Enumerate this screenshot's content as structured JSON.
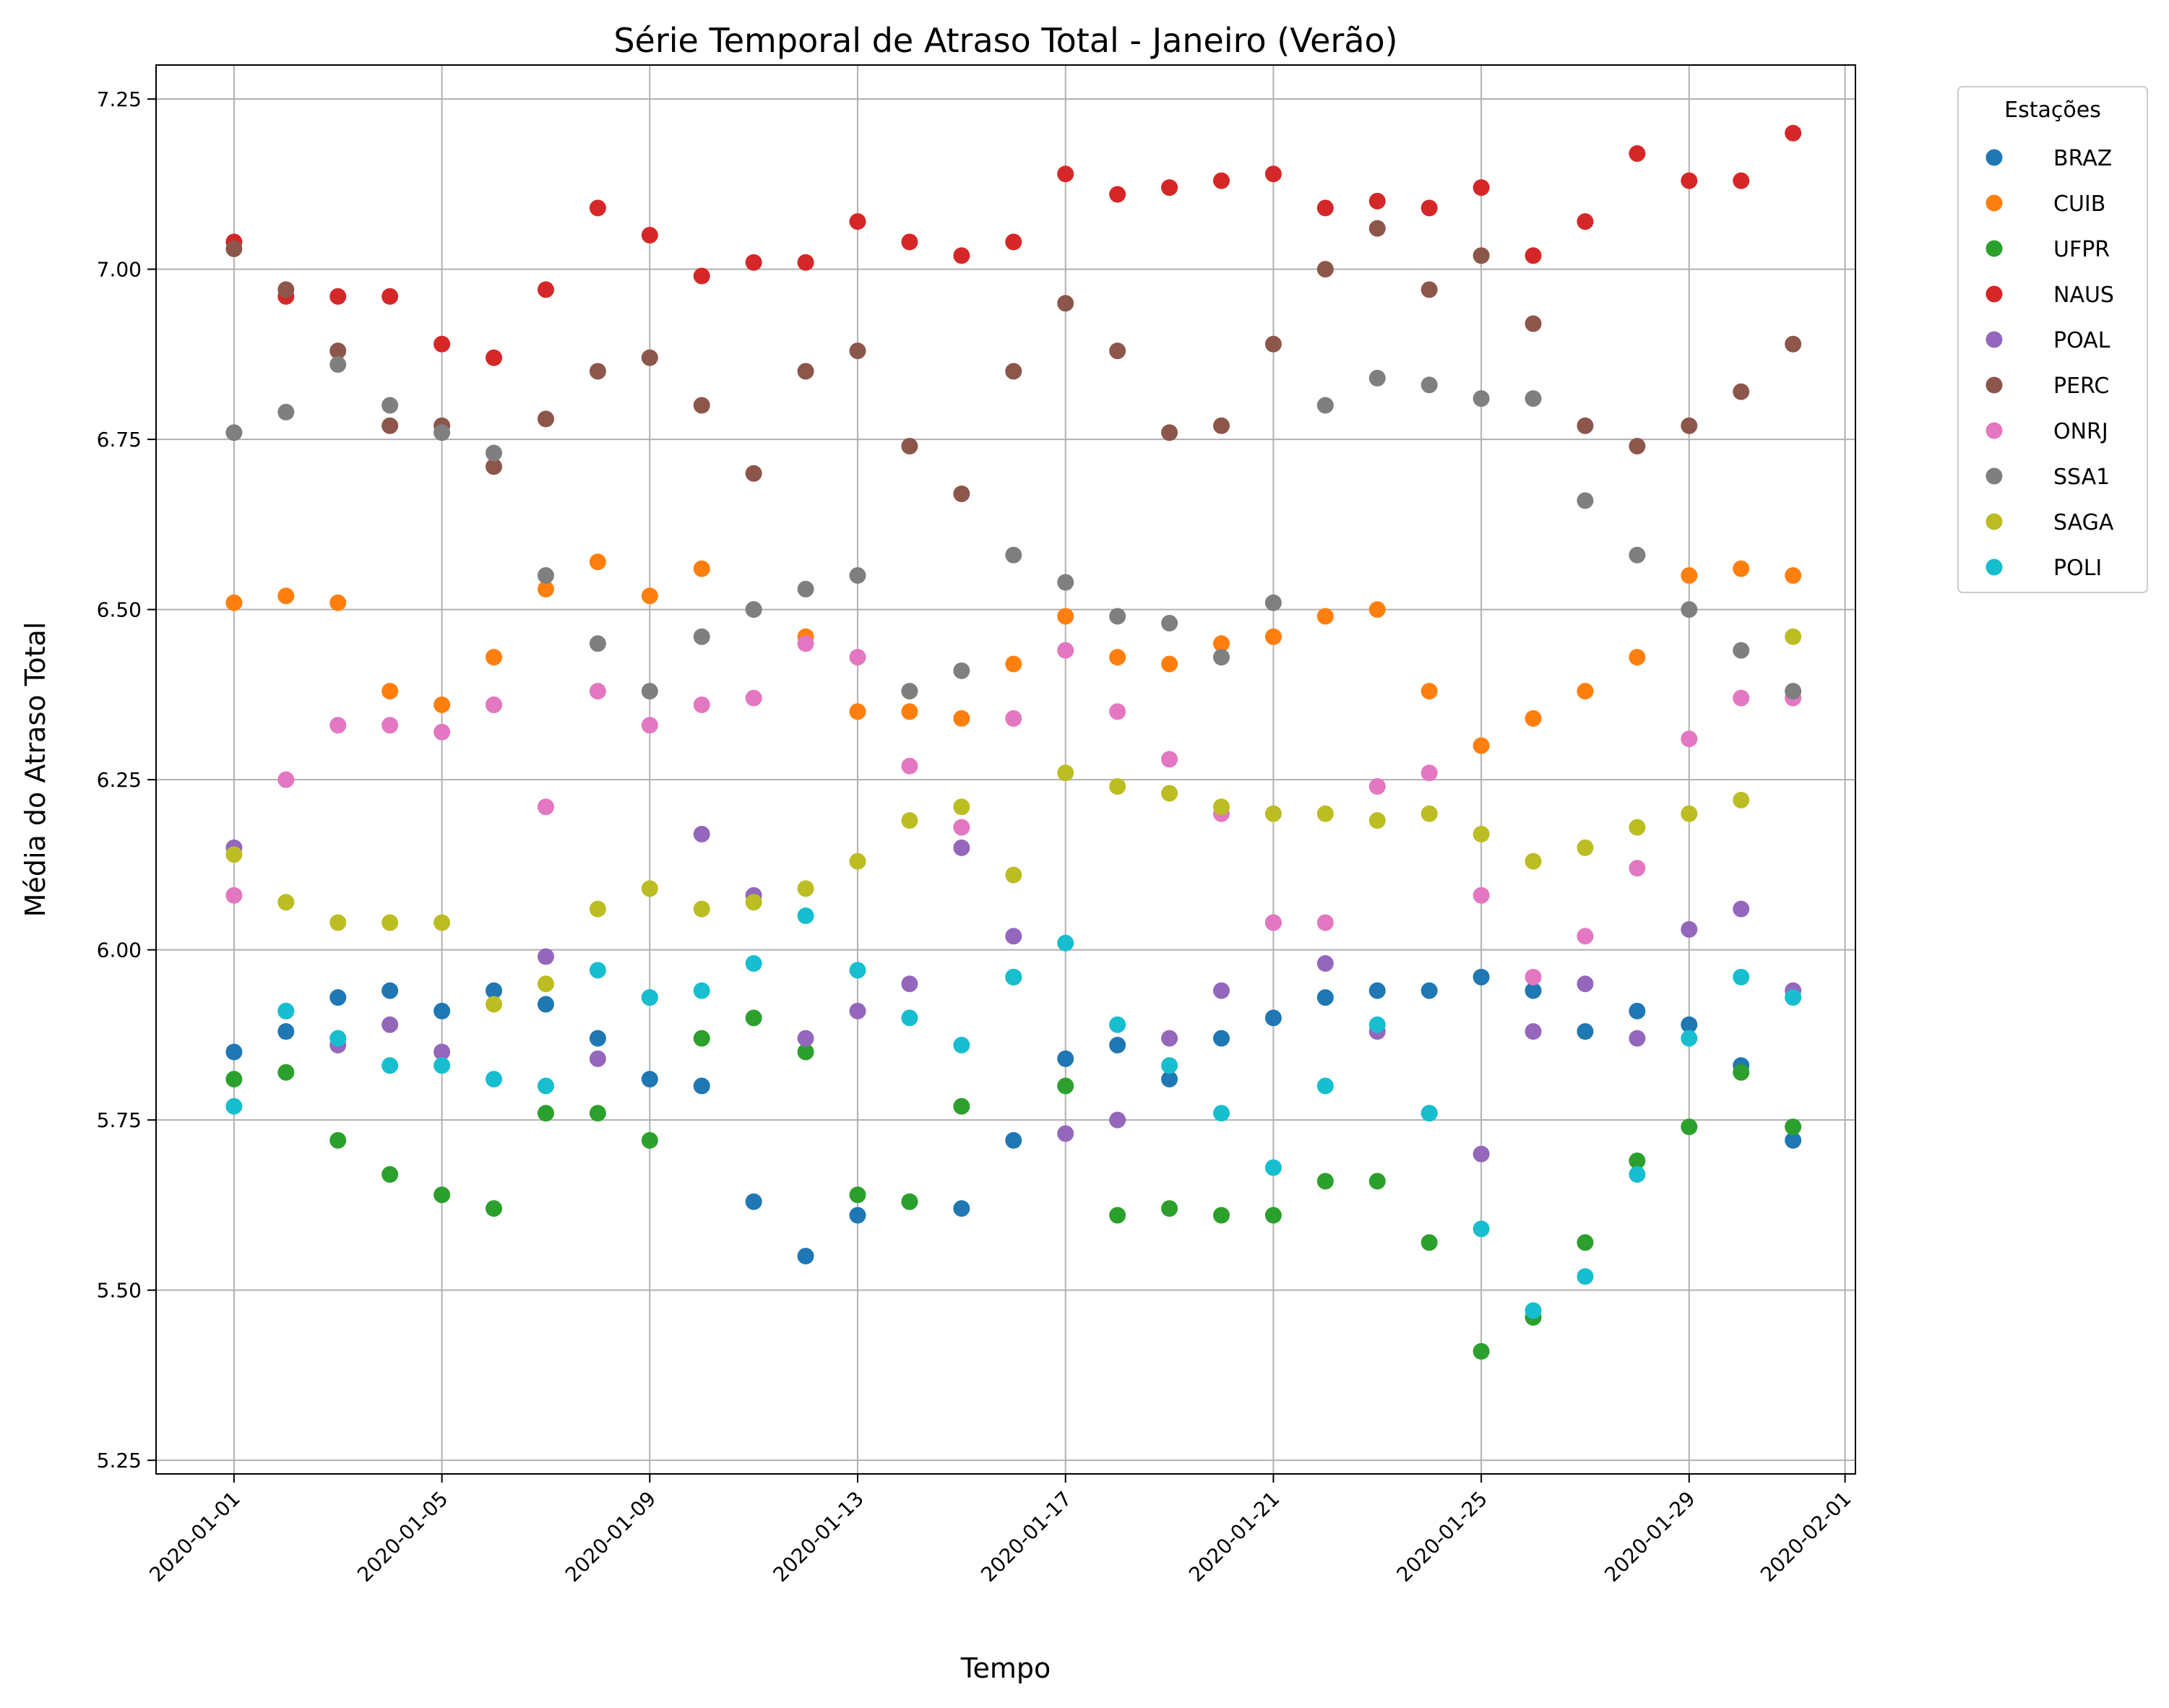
{
  "chart_data": {
    "type": "scatter",
    "title": "Série Temporal de Atraso Total - Janeiro (Verão)",
    "xlabel": "Tempo",
    "ylabel": "Média do Atraso Total",
    "x_type": "date",
    "xlim": [
      "2019-12-30",
      "2020-02-01"
    ],
    "ylim": [
      5.23,
      7.3
    ],
    "x_ticks": [
      "2020-01-01",
      "2020-01-05",
      "2020-01-09",
      "2020-01-13",
      "2020-01-17",
      "2020-01-21",
      "2020-01-25",
      "2020-01-29",
      "2020-02-01"
    ],
    "y_ticks": [
      "5.25",
      "5.50",
      "5.75",
      "6.00",
      "6.25",
      "6.50",
      "6.75",
      "7.00",
      "7.25"
    ],
    "grid": true,
    "legend": {
      "title": "Estações",
      "position": "outside-top-right"
    },
    "x": [
      "2020-01-01",
      "2020-01-02",
      "2020-01-03",
      "2020-01-04",
      "2020-01-05",
      "2020-01-06",
      "2020-01-07",
      "2020-01-08",
      "2020-01-09",
      "2020-01-10",
      "2020-01-11",
      "2020-01-12",
      "2020-01-13",
      "2020-01-14",
      "2020-01-15",
      "2020-01-16",
      "2020-01-17",
      "2020-01-18",
      "2020-01-19",
      "2020-01-20",
      "2020-01-21",
      "2020-01-22",
      "2020-01-23",
      "2020-01-24",
      "2020-01-25",
      "2020-01-26",
      "2020-01-27",
      "2020-01-28",
      "2020-01-29",
      "2020-01-30",
      "2020-01-31"
    ],
    "series": [
      {
        "name": "BRAZ",
        "color": "#1f77b4",
        "values": [
          5.85,
          5.88,
          5.93,
          5.94,
          5.91,
          5.94,
          5.92,
          5.87,
          5.81,
          5.8,
          5.63,
          5.55,
          5.61,
          5.63,
          5.62,
          5.72,
          5.84,
          5.86,
          5.81,
          5.87,
          5.9,
          5.93,
          5.94,
          5.94,
          5.96,
          5.94,
          5.88,
          5.91,
          5.89,
          5.83,
          5.72
        ]
      },
      {
        "name": "CUIB",
        "color": "#ff7f0e",
        "values": [
          6.51,
          6.52,
          6.51,
          6.38,
          6.36,
          6.43,
          6.53,
          6.57,
          6.52,
          6.56,
          6.5,
          6.46,
          6.35,
          6.35,
          6.34,
          6.42,
          6.49,
          6.43,
          6.42,
          6.45,
          6.46,
          6.49,
          6.5,
          6.38,
          6.3,
          6.34,
          6.38,
          6.43,
          6.55,
          6.56,
          6.55
        ]
      },
      {
        "name": "UFPR",
        "color": "#2ca02c",
        "values": [
          5.81,
          5.82,
          5.72,
          5.67,
          5.64,
          5.62,
          5.76,
          5.76,
          5.72,
          5.87,
          5.9,
          5.85,
          5.64,
          5.63,
          5.77,
          5.96,
          5.8,
          5.61,
          5.62,
          5.61,
          5.61,
          5.66,
          5.66,
          5.57,
          5.41,
          5.46,
          5.57,
          5.69,
          5.74,
          5.82,
          5.74
        ]
      },
      {
        "name": "NAUS",
        "color": "#d62728",
        "values": [
          7.04,
          6.96,
          6.96,
          6.96,
          6.89,
          6.87,
          6.97,
          7.09,
          7.05,
          6.99,
          7.01,
          7.01,
          7.07,
          7.04,
          7.02,
          7.04,
          7.14,
          7.11,
          7.12,
          7.13,
          7.14,
          7.09,
          7.1,
          7.09,
          7.12,
          7.02,
          7.07,
          7.17,
          7.13,
          7.13,
          7.2
        ]
      },
      {
        "name": "POAL",
        "color": "#9467bd",
        "values": [
          6.15,
          5.91,
          5.86,
          5.89,
          5.85,
          6.36,
          5.99,
          5.84,
          5.93,
          6.17,
          6.08,
          5.87,
          5.91,
          5.95,
          6.15,
          6.02,
          5.73,
          5.75,
          5.87,
          5.94,
          6.04,
          5.98,
          5.88,
          5.76,
          5.7,
          5.88,
          5.95,
          5.87,
          6.03,
          6.06,
          5.94
        ]
      },
      {
        "name": "PERC",
        "color": "#8c564b",
        "values": [
          7.03,
          6.97,
          6.88,
          6.77,
          6.77,
          6.71,
          6.78,
          6.85,
          6.87,
          6.8,
          6.7,
          6.85,
          6.88,
          6.74,
          6.67,
          6.85,
          6.95,
          6.88,
          6.76,
          6.77,
          6.89,
          7.0,
          7.06,
          6.97,
          7.02,
          6.92,
          6.77,
          6.74,
          6.77,
          6.82,
          6.89
        ]
      },
      {
        "name": "ONRJ",
        "color": "#e377c2",
        "values": [
          6.08,
          6.25,
          6.33,
          6.33,
          6.32,
          6.36,
          6.21,
          6.38,
          6.33,
          6.36,
          6.37,
          6.45,
          6.43,
          6.27,
          6.18,
          6.34,
          6.44,
          6.35,
          6.28,
          6.2,
          6.04,
          6.04,
          6.24,
          6.26,
          6.08,
          5.96,
          6.02,
          6.12,
          6.31,
          6.37,
          6.37
        ]
      },
      {
        "name": "SSA1",
        "color": "#7f7f7f",
        "values": [
          6.76,
          6.79,
          6.86,
          6.8,
          6.76,
          6.73,
          6.55,
          6.45,
          6.38,
          6.46,
          6.5,
          6.53,
          6.55,
          6.38,
          6.41,
          6.58,
          6.54,
          6.49,
          6.48,
          6.43,
          6.51,
          6.8,
          6.84,
          6.83,
          6.81,
          6.81,
          6.66,
          6.58,
          6.5,
          6.44,
          6.38
        ]
      },
      {
        "name": "SAGA",
        "color": "#bcbd22",
        "values": [
          6.14,
          6.07,
          6.04,
          6.04,
          6.04,
          5.92,
          5.95,
          6.06,
          6.09,
          6.06,
          6.07,
          6.09,
          6.13,
          6.19,
          6.21,
          6.11,
          6.26,
          6.24,
          6.23,
          6.21,
          6.2,
          6.2,
          6.19,
          6.2,
          6.17,
          6.13,
          6.15,
          6.18,
          6.2,
          6.22,
          6.46
        ]
      },
      {
        "name": "POLI",
        "color": "#17becf",
        "values": [
          5.77,
          5.91,
          5.87,
          5.83,
          5.83,
          5.81,
          5.8,
          5.97,
          5.93,
          5.94,
          5.98,
          6.05,
          5.97,
          5.9,
          5.86,
          5.96,
          6.01,
          5.89,
          5.83,
          5.76,
          5.68,
          5.8,
          5.89,
          5.76,
          5.59,
          5.47,
          5.52,
          5.67,
          5.87,
          5.96,
          5.93
        ]
      }
    ]
  }
}
